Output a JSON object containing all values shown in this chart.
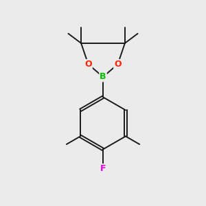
{
  "background_color": "#ebebeb",
  "bond_color": "#1a1a1a",
  "atom_colors": {
    "B": "#00bb00",
    "O": "#ff2200",
    "F": "#dd00dd",
    "C": "#1a1a1a"
  },
  "figsize": [
    3.0,
    3.0
  ],
  "dpi": 100,
  "bond_lw": 1.4,
  "fontsize_BO": 9,
  "fontsize_F": 9
}
